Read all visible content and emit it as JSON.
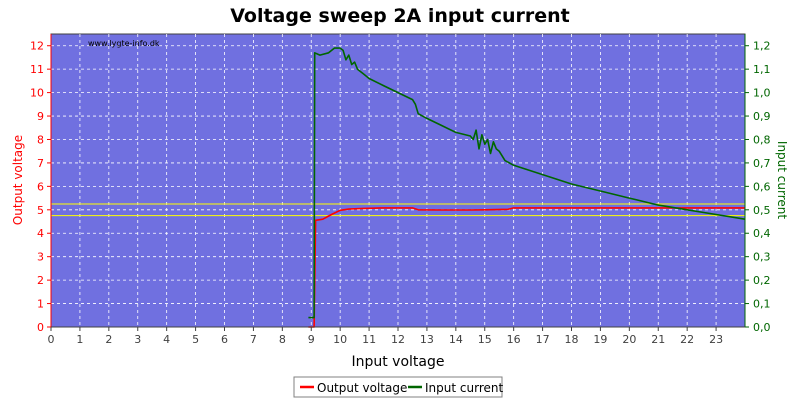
{
  "chart_data": {
    "type": "line",
    "title": "Voltage sweep 2A input current",
    "watermark": "www.lygte-info.dk",
    "xlabel": "Input voltage",
    "ylabel_left": "Output voltage",
    "ylabel_right": "Input current",
    "xlim": [
      0,
      24
    ],
    "ylim_left": [
      0,
      12.5
    ],
    "ylim_right": [
      0,
      1.25
    ],
    "x_ticks": [
      0,
      1,
      2,
      3,
      4,
      5,
      6,
      7,
      8,
      9,
      10,
      11,
      12,
      13,
      14,
      15,
      16,
      17,
      18,
      19,
      20,
      21,
      22,
      23
    ],
    "y_left_ticks": [
      0,
      1,
      2,
      3,
      4,
      5,
      6,
      7,
      8,
      9,
      10,
      11,
      12
    ],
    "y_right_ticks": [
      "0,0",
      "0,1",
      "0,2",
      "0,3",
      "0,4",
      "0,5",
      "0,6",
      "0,7",
      "0,8",
      "0,9",
      "1,0",
      "1,1",
      "1,2"
    ],
    "grid": true,
    "legend": "bottom-center",
    "reference_lines_left_axis": [
      4.75,
      5.25
    ],
    "series": [
      {
        "name": "Output voltage",
        "axis": "left",
        "color": "#ff0000",
        "points": [
          [
            8.9,
            0
          ],
          [
            9.1,
            0
          ],
          [
            9.15,
            4.55
          ],
          [
            9.4,
            4.6
          ],
          [
            9.7,
            4.8
          ],
          [
            10.0,
            4.98
          ],
          [
            10.3,
            5.03
          ],
          [
            10.8,
            5.06
          ],
          [
            11.5,
            5.08
          ],
          [
            12.5,
            5.08
          ],
          [
            12.7,
            5.0
          ],
          [
            13.5,
            4.99
          ],
          [
            14.5,
            4.99
          ],
          [
            15.0,
            5.0
          ],
          [
            15.8,
            5.02
          ],
          [
            16.0,
            5.08
          ],
          [
            18.0,
            5.08
          ],
          [
            20.0,
            5.08
          ],
          [
            22.0,
            5.08
          ],
          [
            24.0,
            5.08
          ]
        ]
      },
      {
        "name": "Input current",
        "axis": "right",
        "color": "#006600",
        "points": [
          [
            8.9,
            0.04
          ],
          [
            9.1,
            0.04
          ],
          [
            9.12,
            1.17
          ],
          [
            9.3,
            1.16
          ],
          [
            9.6,
            1.17
          ],
          [
            9.8,
            1.19
          ],
          [
            10.0,
            1.19
          ],
          [
            10.1,
            1.18
          ],
          [
            10.2,
            1.14
          ],
          [
            10.3,
            1.16
          ],
          [
            10.4,
            1.12
          ],
          [
            10.5,
            1.13
          ],
          [
            10.6,
            1.1
          ],
          [
            10.8,
            1.08
          ],
          [
            11.0,
            1.06
          ],
          [
            11.5,
            1.03
          ],
          [
            12.0,
            1.0
          ],
          [
            12.5,
            0.97
          ],
          [
            12.6,
            0.95
          ],
          [
            12.7,
            0.91
          ],
          [
            13.0,
            0.89
          ],
          [
            13.5,
            0.86
          ],
          [
            14.0,
            0.83
          ],
          [
            14.5,
            0.815
          ],
          [
            14.6,
            0.8
          ],
          [
            14.7,
            0.84
          ],
          [
            14.8,
            0.76
          ],
          [
            14.9,
            0.82
          ],
          [
            15.0,
            0.78
          ],
          [
            15.1,
            0.8
          ],
          [
            15.2,
            0.74
          ],
          [
            15.3,
            0.79
          ],
          [
            15.4,
            0.76
          ],
          [
            15.5,
            0.75
          ],
          [
            15.7,
            0.71
          ],
          [
            16.0,
            0.69
          ],
          [
            17.0,
            0.65
          ],
          [
            18.0,
            0.61
          ],
          [
            19.0,
            0.58
          ],
          [
            20.0,
            0.55
          ],
          [
            21.0,
            0.52
          ],
          [
            22.0,
            0.5
          ],
          [
            23.0,
            0.48
          ],
          [
            24.0,
            0.46
          ]
        ]
      }
    ]
  }
}
